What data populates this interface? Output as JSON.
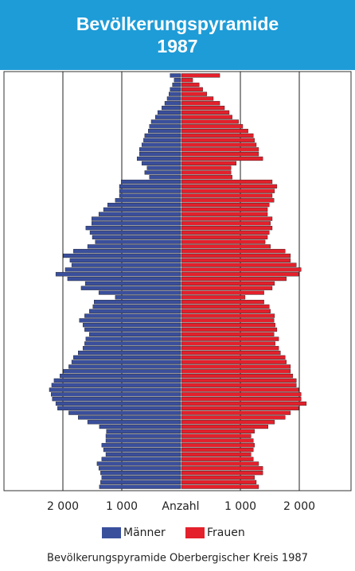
{
  "chart_data": {
    "type": "population-pyramid",
    "title": "Bevölkerungspyramide 1987",
    "x_label": "Anzahl",
    "caption": "Bevölkerungspyramide Oberbergischer Kreis 1987",
    "xlim": [
      0,
      3000
    ],
    "xticks": [
      {
        "value": 2000,
        "label": "2 000"
      },
      {
        "value": 1000,
        "label": "1 000"
      }
    ],
    "grid": true,
    "legend": "bottom",
    "series": [
      {
        "name": "Männer",
        "color": "#3a4f9c",
        "values": [
          1380,
          1360,
          1340,
          1360,
          1390,
          1420,
          1340,
          1270,
          1310,
          1340,
          1270,
          1270,
          1260,
          1380,
          1580,
          1740,
          1900,
          2090,
          2120,
          2180,
          2200,
          2230,
          2190,
          2150,
          2050,
          1990,
          1900,
          1850,
          1820,
          1740,
          1660,
          1630,
          1610,
          1550,
          1630,
          1660,
          1720,
          1630,
          1550,
          1490,
          1470,
          1110,
          1390,
          1690,
          1620,
          1920,
          2120,
          1960,
          1850,
          1880,
          1990,
          1820,
          1580,
          1450,
          1500,
          1540,
          1610,
          1510,
          1510,
          1390,
          1310,
          1240,
          1110,
          1040,
          1040,
          1040,
          1010,
          530,
          610,
          570,
          660,
          740,
          700,
          700,
          660,
          630,
          610,
          550,
          530,
          500,
          430,
          390,
          320,
          270,
          230,
          200,
          180,
          140,
          110,
          180
        ]
      },
      {
        "name": "Frauen",
        "color": "#e3202b",
        "values": [
          1310,
          1270,
          1240,
          1380,
          1380,
          1310,
          1220,
          1180,
          1220,
          1240,
          1220,
          1180,
          1240,
          1470,
          1580,
          1760,
          1850,
          1990,
          2120,
          2030,
          2030,
          1990,
          1950,
          1950,
          1890,
          1850,
          1850,
          1780,
          1760,
          1680,
          1650,
          1590,
          1650,
          1570,
          1620,
          1590,
          1570,
          1580,
          1510,
          1490,
          1400,
          1080,
          1400,
          1540,
          1580,
          1780,
          1990,
          2030,
          1950,
          1850,
          1850,
          1760,
          1510,
          1420,
          1460,
          1490,
          1540,
          1510,
          1540,
          1460,
          1460,
          1490,
          1570,
          1540,
          1580,
          1620,
          1540,
          860,
          840,
          840,
          930,
          1380,
          1310,
          1310,
          1270,
          1240,
          1220,
          1130,
          1040,
          970,
          860,
          810,
          730,
          650,
          540,
          430,
          360,
          300,
          190,
          650
        ]
      }
    ]
  }
}
